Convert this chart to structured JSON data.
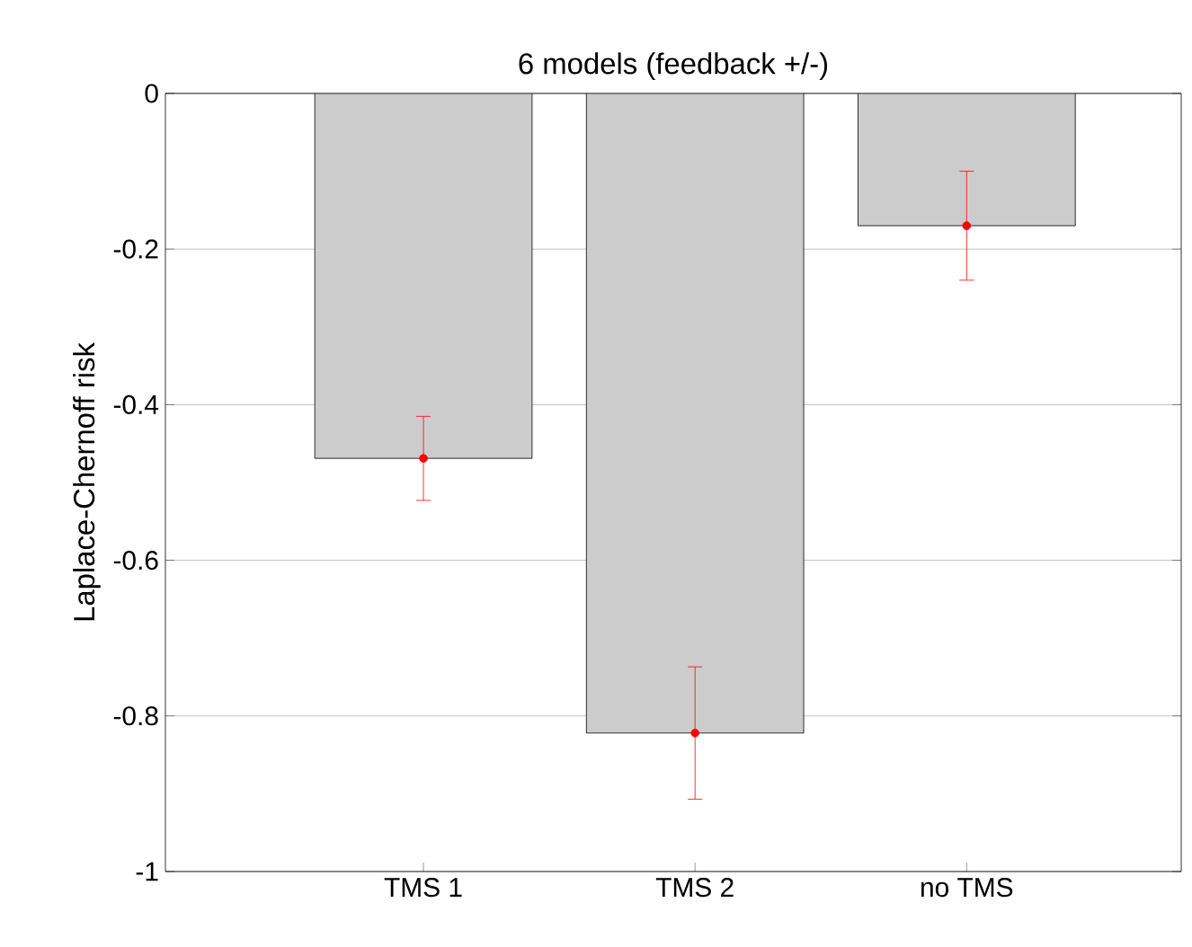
{
  "chart_data": {
    "type": "bar",
    "title": "6 models (feedback +/-)",
    "ylabel": "Laplace-Chernoff risk",
    "categories": [
      "TMS 1",
      "TMS 2",
      "no TMS"
    ],
    "series": [
      {
        "color": "#cccccc",
        "values": [
          -0.469,
          -0.822,
          -0.17
        ]
      },
      {
        "type": "scatter",
        "color": "#ff0000",
        "x": [
          "TMS 1",
          "TMS 2",
          "no TMS"
        ],
        "values": [
          -0.469,
          -0.822,
          -0.17
        ],
        "errors": [
          0.054,
          0.085,
          0.07
        ],
        "marker": "circle"
      }
    ],
    "ylim": [
      -1,
      0
    ],
    "yticks": [
      -1,
      -0.8,
      -0.6,
      -0.4,
      -0.2,
      0
    ],
    "grid": "y"
  }
}
